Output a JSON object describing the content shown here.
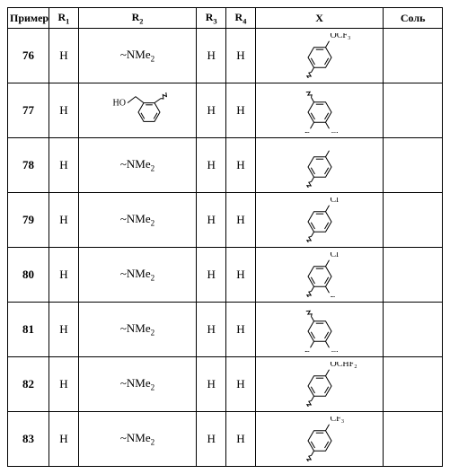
{
  "headers": {
    "primer": "Пример",
    "r1": "R₁",
    "r2": "R₂",
    "r3": "R₃",
    "r4": "R₄",
    "x": "X",
    "salt": "Соль"
  },
  "rows": [
    {
      "primer": "76",
      "r1": "H",
      "r2": "~NMe₂",
      "r3": "H",
      "r4": "H",
      "x_svg": "ocf3",
      "salt": ""
    },
    {
      "primer": "77",
      "r1": "H",
      "r2_svg": "benzyl_oh",
      "r3": "H",
      "r4": "H",
      "x_svg": "f_cl_ortho",
      "salt": ""
    },
    {
      "primer": "78",
      "r1": "H",
      "r2": "~NMe₂",
      "r3": "H",
      "r4": "H",
      "x_svg": "methyl",
      "salt": ""
    },
    {
      "primer": "79",
      "r1": "H",
      "r2": "~NMe₂",
      "r3": "H",
      "r4": "H",
      "x_svg": "cl_meta",
      "salt": ""
    },
    {
      "primer": "80",
      "r1": "H",
      "r2": "~NMe₂",
      "r3": "H",
      "r4": "H",
      "x_svg": "cl_f",
      "salt": ""
    },
    {
      "primer": "81",
      "r1": "H",
      "r2": "~NMe₂",
      "r3": "H",
      "r4": "H",
      "x_svg": "f_cl_ortho",
      "salt": ""
    },
    {
      "primer": "82",
      "r1": "H",
      "r2": "~NMe₂",
      "r3": "H",
      "r4": "H",
      "x_svg": "ochf2",
      "salt": ""
    },
    {
      "primer": "83",
      "r1": "H",
      "r2": "~NMe₂",
      "r3": "H",
      "r4": "H",
      "x_svg": "cf3",
      "salt": ""
    }
  ],
  "svg_defs": {
    "stroke": "#000000",
    "stroke_width": 1,
    "font_family": "Times New Roman, serif",
    "label_fontsize": 10
  }
}
